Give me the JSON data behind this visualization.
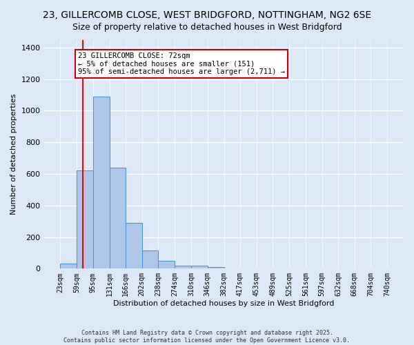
{
  "title": "23, GILLERCOMB CLOSE, WEST BRIDGFORD, NOTTINGHAM, NG2 6SE",
  "subtitle": "Size of property relative to detached houses in West Bridgford",
  "xlabel": "Distribution of detached houses by size in West Bridgford",
  "ylabel": "Number of detached properties",
  "bin_edges": [
    23,
    59,
    95,
    131,
    166,
    202,
    238,
    274,
    310,
    346,
    382,
    417,
    453,
    489,
    525,
    561,
    597,
    632,
    668,
    704,
    740
  ],
  "bar_heights": [
    30,
    620,
    1090,
    640,
    290,
    115,
    50,
    20,
    20,
    10,
    0,
    0,
    0,
    0,
    0,
    0,
    0,
    0,
    0,
    0
  ],
  "bar_color": "#aec6e8",
  "bar_edge_color": "#4a90d9",
  "red_line_x": 72,
  "ylim": [
    0,
    1450
  ],
  "yticks": [
    0,
    200,
    400,
    600,
    800,
    1000,
    1200,
    1400
  ],
  "annotation_text": "23 GILLERCOMB CLOSE: 72sqm\n← 5% of detached houses are smaller (151)\n95% of semi-detached houses are larger (2,711) →",
  "annotation_box_color": "#ffffff",
  "annotation_box_edge": "#cc0000",
  "footer_line1": "Contains HM Land Registry data © Crown copyright and database right 2025.",
  "footer_line2": "Contains public sector information licensed under the Open Government Licence v3.0.",
  "background_color": "#dce8f5",
  "grid_color": "#ffffff",
  "title_fontsize": 10,
  "subtitle_fontsize": 9,
  "tick_label_fontsize": 7,
  "ylabel_fontsize": 8,
  "xlabel_fontsize": 8,
  "annotation_fontsize": 7.5,
  "footer_fontsize": 6
}
